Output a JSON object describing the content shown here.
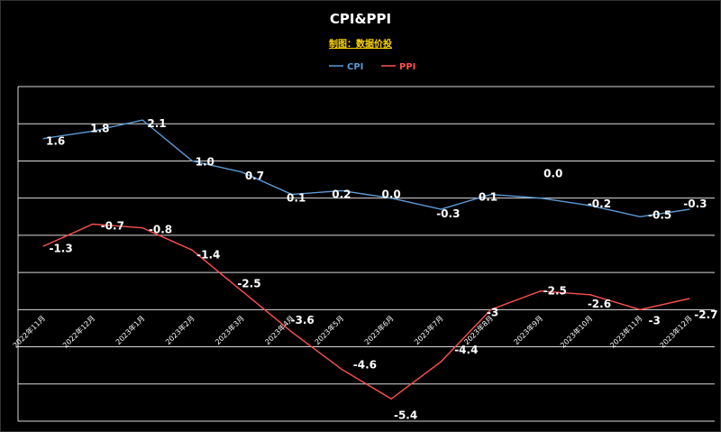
{
  "title": "CPI&PPI",
  "subtitle": "制图：数据价投",
  "chart_data": {
    "type": "line",
    "x": [
      "2022年11月",
      "2022年12月",
      "2023年1月",
      "2023年2月",
      "2023年3月",
      "2023年4月",
      "2023年5月",
      "2023年6月",
      "2023年7月",
      "2023年8月",
      "2023年9月",
      "2023年10月",
      "2023年11月",
      "2023年12月"
    ],
    "series": [
      {
        "name": "CPI",
        "color": "#5b9bd5",
        "values": [
          1.6,
          1.8,
          2.1,
          1.0,
          0.7,
          0.1,
          0.2,
          0.0,
          -0.3,
          0.1,
          0.0,
          -0.2,
          -0.5,
          -0.3
        ],
        "labels": [
          "1.6",
          "1.8",
          "2.1",
          "1.0",
          "0.7",
          "0.1",
          "0.2",
          "0.0",
          "-0.3",
          "0.1",
          "0.0",
          "-0.2",
          "-0.5",
          "-0.3"
        ]
      },
      {
        "name": "PPI",
        "color": "#ff5050",
        "values": [
          -1.3,
          -0.7,
          -0.8,
          -1.4,
          -2.5,
          -3.6,
          -4.6,
          -5.4,
          -4.4,
          -3.0,
          -2.5,
          -2.6,
          -3.0,
          -2.7
        ],
        "labels": [
          "-1.3",
          "-0.7",
          "-0.8",
          "-1.4",
          "-2.5",
          "-3.6",
          "-4.6",
          "-5.4",
          "-4.4",
          "-3",
          "-2.5",
          "-2.6",
          "-3",
          "-2.7"
        ]
      }
    ],
    "ylim": [
      -6,
      3
    ],
    "grid": true,
    "legend_position": "top-center",
    "colors": {
      "background": "#000000",
      "grid": "#d9d9d9",
      "text": "#ffffff"
    }
  }
}
